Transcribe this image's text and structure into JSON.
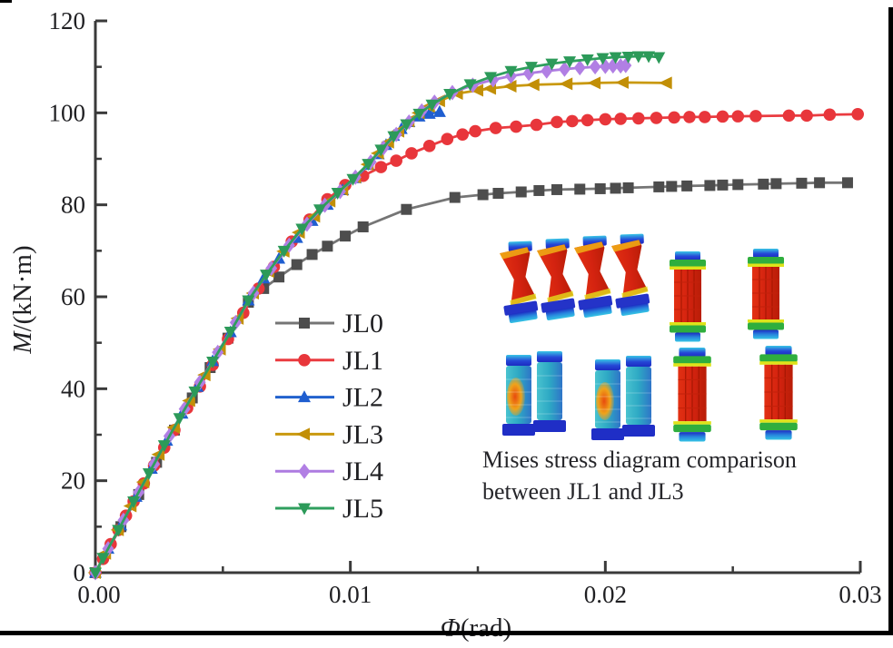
{
  "inset": {
    "caption_line1": "Mises stress diagram comparison",
    "caption_line2": "between JL1 and JL3",
    "description_icons": [
      "deformed-bolt-spool-stress-icon",
      "intact-bolt-cylinder-stress-icon"
    ]
  },
  "chart_data": {
    "type": "line",
    "title": "",
    "xlabel": "Φ(rad)",
    "ylabel": "M/(kN·m)",
    "xlabel_parts": {
      "italic": "Φ",
      "rest": "(rad)"
    },
    "ylabel_parts": {
      "italic": "M",
      "rest": "/(kN·m)"
    },
    "xlim": [
      0,
      0.03
    ],
    "ylim": [
      0,
      120
    ],
    "x_major_ticks": [
      0,
      0.01,
      0.02,
      0.03
    ],
    "x_tick_labels": [
      "0.00",
      "0.01",
      "0.02",
      "0.03"
    ],
    "x_minor_ticks": [
      0.005,
      0.015,
      0.025
    ],
    "y_major_ticks": [
      0,
      20,
      40,
      60,
      80,
      100,
      120
    ],
    "y_tick_labels": [
      "0",
      "20",
      "40",
      "60",
      "80",
      "100",
      "120"
    ],
    "y_minor_ticks": [
      10,
      30,
      50,
      70,
      90,
      110
    ],
    "grid": false,
    "legend_position": "inside-center-left",
    "axis_color": "#3a3a3a",
    "series": [
      {
        "name": "JL0",
        "color": "#757575",
        "marker_color": "#4d4d4d",
        "marker": "square",
        "points": [
          [
            0,
            0
          ],
          [
            0.001,
            10
          ],
          [
            0.0017,
            17
          ],
          [
            0.0024,
            24
          ],
          [
            0.0031,
            31
          ],
          [
            0.0038,
            38
          ],
          [
            0.0045,
            44.6
          ],
          [
            0.0052,
            51
          ],
          [
            0.006,
            58.8
          ],
          [
            0.0066,
            61.8
          ],
          [
            0.0072,
            64.3
          ],
          [
            0.0079,
            67
          ],
          [
            0.0085,
            69.2
          ],
          [
            0.0091,
            71
          ],
          [
            0.0098,
            73.2
          ],
          [
            0.0105,
            75.2
          ],
          [
            0.0122,
            79
          ],
          [
            0.0141,
            81.6
          ],
          [
            0.0152,
            82.2
          ],
          [
            0.0158,
            82.5
          ],
          [
            0.0167,
            82.8
          ],
          [
            0.0174,
            83.1
          ],
          [
            0.0181,
            83.3
          ],
          [
            0.019,
            83.4
          ],
          [
            0.0198,
            83.5
          ],
          [
            0.0204,
            83.6
          ],
          [
            0.0209,
            83.7
          ],
          [
            0.0221,
            83.9
          ],
          [
            0.0226,
            84
          ],
          [
            0.0232,
            84.1
          ],
          [
            0.0241,
            84.2
          ],
          [
            0.0246,
            84.3
          ],
          [
            0.0252,
            84.4
          ],
          [
            0.0262,
            84.5
          ],
          [
            0.0267,
            84.6
          ],
          [
            0.0277,
            84.7
          ],
          [
            0.0284,
            84.8
          ],
          [
            0.0295,
            84.8
          ]
        ]
      },
      {
        "name": "JL1",
        "color": "#ea3b40",
        "marker_color": "#e8363b",
        "marker": "circle",
        "points": [
          [
            0,
            0
          ],
          [
            0.0003,
            3
          ],
          [
            0.0006,
            6.2
          ],
          [
            0.0009,
            9.3
          ],
          [
            0.0012,
            12.4
          ],
          [
            0.0015,
            15.5
          ],
          [
            0.0019,
            19.4
          ],
          [
            0.0023,
            23.3
          ],
          [
            0.0027,
            27.2
          ],
          [
            0.0031,
            31
          ],
          [
            0.0036,
            35.8
          ],
          [
            0.0041,
            40.5
          ],
          [
            0.0046,
            45.2
          ],
          [
            0.0052,
            50.8
          ],
          [
            0.0058,
            56.5
          ],
          [
            0.0064,
            61.8
          ],
          [
            0.007,
            66.5
          ],
          [
            0.0077,
            72
          ],
          [
            0.0084,
            76.8
          ],
          [
            0.0091,
            81.2
          ],
          [
            0.0098,
            84.3
          ],
          [
            0.0105,
            86.3
          ],
          [
            0.0112,
            88.2
          ],
          [
            0.0118,
            89.6
          ],
          [
            0.0124,
            91.2
          ],
          [
            0.0131,
            92.8
          ],
          [
            0.0138,
            94.3
          ],
          [
            0.0144,
            95.3
          ],
          [
            0.0149,
            96
          ],
          [
            0.0157,
            96.7
          ],
          [
            0.0165,
            97
          ],
          [
            0.0173,
            97.4
          ],
          [
            0.0181,
            98
          ],
          [
            0.0187,
            98.2
          ],
          [
            0.0193,
            98.4
          ],
          [
            0.02,
            98.6
          ],
          [
            0.0206,
            98.7
          ],
          [
            0.0213,
            98.8
          ],
          [
            0.022,
            98.9
          ],
          [
            0.0227,
            99
          ],
          [
            0.0233,
            99.1
          ],
          [
            0.0239,
            99.1
          ],
          [
            0.0246,
            99.2
          ],
          [
            0.0252,
            99.25
          ],
          [
            0.0259,
            99.3
          ],
          [
            0.0272,
            99.4
          ],
          [
            0.0279,
            99.4
          ],
          [
            0.0288,
            99.6
          ],
          [
            0.0299,
            99.7
          ]
        ]
      },
      {
        "name": "JL2",
        "color": "#2161cd",
        "marker_color": "#1f5ed0",
        "marker": "triangle-up",
        "points": [
          [
            0,
            0
          ],
          [
            0.0005,
            5.2
          ],
          [
            0.001,
            10.3
          ],
          [
            0.0016,
            16.5
          ],
          [
            0.0022,
            22.6
          ],
          [
            0.0028,
            28.7
          ],
          [
            0.0034,
            34.6
          ],
          [
            0.004,
            40.4
          ],
          [
            0.0046,
            46
          ],
          [
            0.0053,
            52.3
          ],
          [
            0.006,
            59.2
          ],
          [
            0.0066,
            64
          ],
          [
            0.0072,
            68.3
          ],
          [
            0.0079,
            72.8
          ],
          [
            0.0085,
            76.5
          ],
          [
            0.0091,
            80
          ],
          [
            0.0097,
            83.2
          ],
          [
            0.0102,
            85.8
          ],
          [
            0.0107,
            88.7
          ],
          [
            0.0111,
            91
          ],
          [
            0.0114,
            93
          ],
          [
            0.0117,
            95
          ],
          [
            0.012,
            96.5
          ],
          [
            0.0123,
            98
          ],
          [
            0.0127,
            99.2
          ],
          [
            0.0131,
            99.8
          ],
          [
            0.0135,
            100.2
          ]
        ]
      },
      {
        "name": "JL3",
        "color": "#c9990e",
        "marker_color": "#c28f07",
        "marker": "triangle-left",
        "points": [
          [
            0,
            0
          ],
          [
            0.0004,
            4.2
          ],
          [
            0.0009,
            9.3
          ],
          [
            0.0014,
            14.5
          ],
          [
            0.0019,
            19.7
          ],
          [
            0.0025,
            25.7
          ],
          [
            0.0031,
            31.6
          ],
          [
            0.0037,
            37.4
          ],
          [
            0.0043,
            43
          ],
          [
            0.0049,
            48.6
          ],
          [
            0.0056,
            55.3
          ],
          [
            0.0062,
            60.8
          ],
          [
            0.0068,
            65.5
          ],
          [
            0.0074,
            69.9
          ],
          [
            0.008,
            74
          ],
          [
            0.0086,
            77.5
          ],
          [
            0.0092,
            80.8
          ],
          [
            0.0097,
            83.3
          ],
          [
            0.0102,
            86
          ],
          [
            0.0107,
            88.8
          ],
          [
            0.0111,
            91.2
          ],
          [
            0.0115,
            93.6
          ],
          [
            0.0119,
            96
          ],
          [
            0.0123,
            98.2
          ],
          [
            0.0127,
            100
          ],
          [
            0.0131,
            101.4
          ],
          [
            0.0135,
            102.6
          ],
          [
            0.0142,
            104.2
          ],
          [
            0.015,
            104.9
          ],
          [
            0.0155,
            105.3
          ],
          [
            0.0163,
            105.8
          ],
          [
            0.0172,
            106.1
          ],
          [
            0.0185,
            106.3
          ],
          [
            0.0196,
            106.5
          ],
          [
            0.0207,
            106.6
          ],
          [
            0.0224,
            106.5
          ]
        ]
      },
      {
        "name": "JL4",
        "color": "#ad7be0",
        "marker_color": "#b17fe4",
        "marker": "diamond",
        "points": [
          [
            0,
            0
          ],
          [
            0.0005,
            5.2
          ],
          [
            0.0011,
            11.4
          ],
          [
            0.0017,
            17.5
          ],
          [
            0.0023,
            23.6
          ],
          [
            0.0029,
            29.7
          ],
          [
            0.0035,
            35.6
          ],
          [
            0.0041,
            41.4
          ],
          [
            0.0048,
            47.9
          ],
          [
            0.0055,
            54.4
          ],
          [
            0.0062,
            60.8
          ],
          [
            0.0069,
            66.2
          ],
          [
            0.0076,
            71.2
          ],
          [
            0.0083,
            75.8
          ],
          [
            0.009,
            79.9
          ],
          [
            0.0096,
            82.9
          ],
          [
            0.0102,
            86
          ],
          [
            0.0108,
            89.3
          ],
          [
            0.0113,
            92.4
          ],
          [
            0.0118,
            95.3
          ],
          [
            0.0123,
            98
          ],
          [
            0.0128,
            100.4
          ],
          [
            0.0133,
            102.3
          ],
          [
            0.014,
            104.4
          ],
          [
            0.0148,
            106
          ],
          [
            0.0156,
            107.2
          ],
          [
            0.0163,
            108
          ],
          [
            0.017,
            108.6
          ],
          [
            0.0177,
            109.1
          ],
          [
            0.0184,
            109.5
          ],
          [
            0.019,
            109.8
          ],
          [
            0.0196,
            110
          ],
          [
            0.02,
            110.1
          ],
          [
            0.0203,
            110.2
          ],
          [
            0.0206,
            110.2
          ],
          [
            0.0208,
            110.3
          ]
        ]
      },
      {
        "name": "JL5",
        "color": "#2f9f5e",
        "marker_color": "#2c9a59",
        "marker": "triangle-down",
        "points": [
          [
            0,
            0
          ],
          [
            0.0003,
            3.2
          ],
          [
            0.0009,
            9.3
          ],
          [
            0.0015,
            15.5
          ],
          [
            0.0021,
            21.6
          ],
          [
            0.0027,
            27.7
          ],
          [
            0.0033,
            33.6
          ],
          [
            0.0039,
            39.4
          ],
          [
            0.0046,
            45.9
          ],
          [
            0.0053,
            52.4
          ],
          [
            0.006,
            59.2
          ],
          [
            0.0067,
            64.8
          ],
          [
            0.0074,
            70
          ],
          [
            0.0081,
            74.8
          ],
          [
            0.0088,
            79
          ],
          [
            0.0095,
            82.6
          ],
          [
            0.0101,
            85.6
          ],
          [
            0.0107,
            88.9
          ],
          [
            0.0112,
            92
          ],
          [
            0.0117,
            94.9
          ],
          [
            0.0122,
            97.5
          ],
          [
            0.0127,
            99.8
          ],
          [
            0.0132,
            101.8
          ],
          [
            0.0139,
            104.1
          ],
          [
            0.0147,
            106.2
          ],
          [
            0.0155,
            107.8
          ],
          [
            0.0163,
            109.1
          ],
          [
            0.0171,
            110
          ],
          [
            0.0179,
            110.7
          ],
          [
            0.0186,
            111.2
          ],
          [
            0.0193,
            111.6
          ],
          [
            0.0199,
            111.9
          ],
          [
            0.0204,
            112.1
          ],
          [
            0.0209,
            112.2
          ],
          [
            0.0213,
            112.3
          ],
          [
            0.0217,
            112.3
          ],
          [
            0.0221,
            112.1
          ]
        ]
      }
    ],
    "annotation": "Mises stress diagram comparison between JL1 and JL3"
  }
}
